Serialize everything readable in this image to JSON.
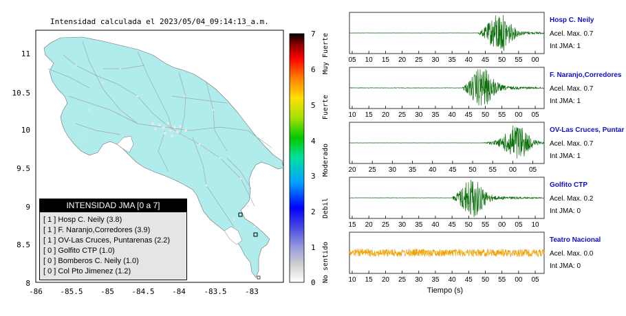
{
  "map": {
    "title": "Intensidad calculada el 2023/05/04_09:14:13_a.m.",
    "x_ticks": [
      "-86",
      "-85.5",
      "-85",
      "-84.5",
      "-84",
      "-83.5",
      "-83"
    ],
    "y_ticks": [
      "11",
      "10.5",
      "10",
      "9.5",
      "9",
      "8.5",
      "8"
    ]
  },
  "colorbar": {
    "ticks": [
      "0",
      "1",
      "2",
      "3",
      "4",
      "5",
      "6",
      "7"
    ],
    "categories": [
      "No sentido",
      "Debil",
      "Moderado",
      "Fuerte",
      "Muy Fuerte"
    ],
    "colors": {
      "low": "#ffffff",
      "mid": "#00c800",
      "high": "#000000"
    }
  },
  "legend": {
    "title": "INTENSIDAD JMA [0 a 7]",
    "items": [
      "[ 1 ]  Hosp C. Neily (3.8)",
      "[ 1 ]  F. Naranjo,Corredores (3.9)",
      "[ 1 ]  OV-Las Cruces, Puntarenas (2.2)",
      "[ 0 ]  Golfito CTP (1.0)",
      "[ 0 ]  Bomberos C. Neily (1.0)",
      "[ 0 ]  Col Pto Jimenez (1.2)"
    ]
  },
  "stations": [
    {
      "name": "Hosp C. Neily",
      "acel": "Acel. Max. 0.7",
      "int": "Int JMA: 1",
      "ticks": [
        "05",
        "10",
        "15",
        "20",
        "25",
        "30",
        "35",
        "40",
        "45",
        "50",
        "55",
        "00"
      ],
      "color": "#0a6e0a",
      "onset": 0.66,
      "peak": 0.77,
      "amp": 0.9,
      "noise": 0.02
    },
    {
      "name": "F. Naranjo,Corredores",
      "acel": "Acel. Max. 0.7",
      "int": "Int JMA: 1",
      "ticks": [
        "10",
        "15",
        "20",
        "25",
        "30",
        "35",
        "40",
        "45",
        "50",
        "55",
        "00",
        "05"
      ],
      "color": "#0a6e0a",
      "onset": 0.58,
      "peak": 0.68,
      "amp": 0.9,
      "noise": 0.05
    },
    {
      "name": "OV-Las Cruces, Puntar",
      "acel": "Acel. Max. 0.7",
      "int": "Int JMA: 1",
      "ticks": [
        "20",
        "25",
        "30",
        "35",
        "40",
        "45",
        "50",
        "55",
        "00",
        "05"
      ],
      "color": "#0a6e0a",
      "onset": 0.68,
      "peak": 0.86,
      "amp": 0.9,
      "noise": 0.02
    },
    {
      "name": "Golfito CTP",
      "acel": "Acel. Max. 0.2",
      "int": "Int JMA: 0",
      "ticks": [
        "15",
        "20",
        "25",
        "30",
        "35",
        "40",
        "45",
        "50",
        "55",
        "00",
        "05",
        "10"
      ],
      "color": "#0a6e0a",
      "onset": 0.53,
      "peak": 0.63,
      "amp": 0.9,
      "noise": 0.03
    },
    {
      "name": "Teatro Nacional",
      "acel": "Acel. Max. 0.0",
      "int": "Int JMA: 0",
      "ticks": [
        "10",
        "15",
        "20",
        "25",
        "30",
        "35",
        "40",
        "45",
        "50",
        "55",
        "00",
        "05"
      ],
      "color": "#f0a000",
      "onset": 0.0,
      "peak": 0.5,
      "amp": 0.0,
      "noise": 0.8
    }
  ],
  "xlabel": "Tiempo (s)"
}
